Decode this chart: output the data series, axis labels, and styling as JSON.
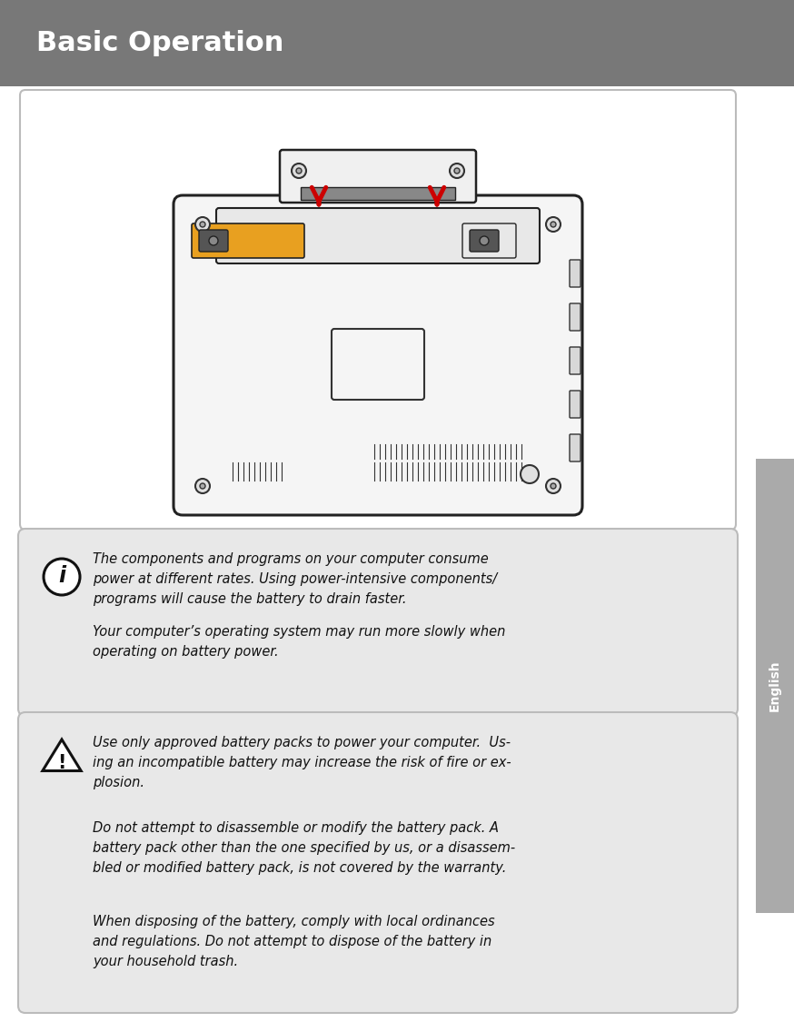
{
  "title": "Basic Operation",
  "title_bg_color": "#787878",
  "title_text_color": "#ffffff",
  "title_fontsize": 22,
  "page_bg_color": "#ffffff",
  "sidebar_color": "#aaaaaa",
  "sidebar_text": "English",
  "info_box_bg": "#e8e8e8",
  "warn_box_bg": "#e8e8e8",
  "body_fontsize": 10.5,
  "info_text1_line1": "The components and programs on your computer consume",
  "info_text1_line2": "power at different rates. Using power-intensive components/",
  "info_text1_line3": "programs will cause the battery to drain faster.",
  "info_text2_line1": "Your computer’s operating system may run more slowly when",
  "info_text2_line2": "operating on battery power.",
  "warn_text1_line1": "Use only approved battery packs to power your computer.  Us-",
  "warn_text1_line2": "ing an incompatible battery may increase the risk of fire or ex-",
  "warn_text1_line3": "plosion.",
  "warn_text2_line1": "Do not attempt to disassemble or modify the battery pack. A",
  "warn_text2_line2": "battery pack other than the one specified by us, or a disassem-",
  "warn_text2_line3": "bled or modified battery pack, is not covered by the warranty.",
  "warn_text3_line1": "When disposing of the battery, comply with local ordinances",
  "warn_text3_line2": "and regulations. Do not attempt to dispose of the battery in",
  "warn_text3_line3": "your household trash."
}
